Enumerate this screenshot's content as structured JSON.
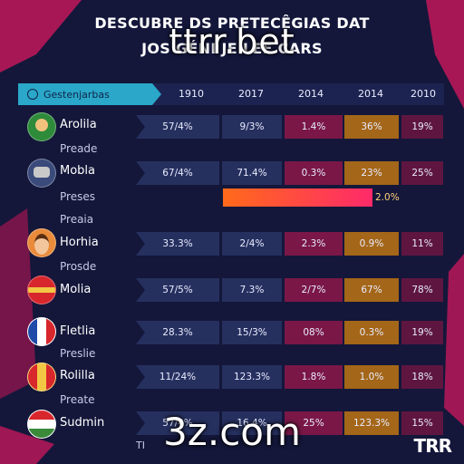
{
  "title": {
    "line1": "DESCUBRE DS PRETECÊGIAS DAT",
    "line2": "JOS GÉNI      JE  LEE CARS"
  },
  "watermarks": {
    "top": "ttrr.bet",
    "bottom": "3z.com"
  },
  "logo": "TRR",
  "footer_text": "TI",
  "header": {
    "label": "Gestenjarbas",
    "columns": [
      "1910",
      "2017",
      "2014",
      "2014",
      "2010"
    ]
  },
  "rows": [
    {
      "name": "Arolila",
      "sub": "Preade",
      "values": [
        "57/4%",
        "9/3%",
        "1.4%",
        "36%",
        "19%"
      ]
    },
    {
      "name": "Mobla",
      "sub": "Preses",
      "values": [
        "67/4%",
        "71.4%",
        "0.3%",
        "23%",
        "25%"
      ]
    },
    {
      "name": "",
      "sub": "Preaia",
      "values": []
    },
    {
      "name": "Horhia",
      "sub": "Prosde",
      "values": [
        "33.3%",
        "2/4%",
        "2.3%",
        "0.9%",
        "11%"
      ]
    },
    {
      "name": "Molia",
      "sub": "",
      "values": [
        "57/5%",
        "7.3%",
        "2/7%",
        "67%",
        "78%"
      ]
    },
    {
      "name": "Fletlia",
      "sub": "Preslie",
      "values": [
        "28.3%",
        "15/3%",
        "08%",
        "0.3%",
        "19%"
      ]
    },
    {
      "name": "Rolilla",
      "sub": "Preate",
      "values": [
        "11/24%",
        "123.3%",
        "1.8%",
        "1.0%",
        "18%"
      ]
    },
    {
      "name": "Sudmin",
      "sub": "",
      "values": [
        "57/4%",
        "16.4%",
        "25%",
        "123.3%",
        "15%"
      ]
    }
  ],
  "highlight_bar": {
    "label": "2.0%",
    "value": 0.85
  },
  "colors": {
    "background": "#14173a",
    "header_tab": "#2aa7c9",
    "cell_blue": "#26305f",
    "cell_red": "#7a1747",
    "cell_gold": "#a46618",
    "bar_start": "#ff6a1a",
    "bar_end": "#ff2a6a"
  }
}
